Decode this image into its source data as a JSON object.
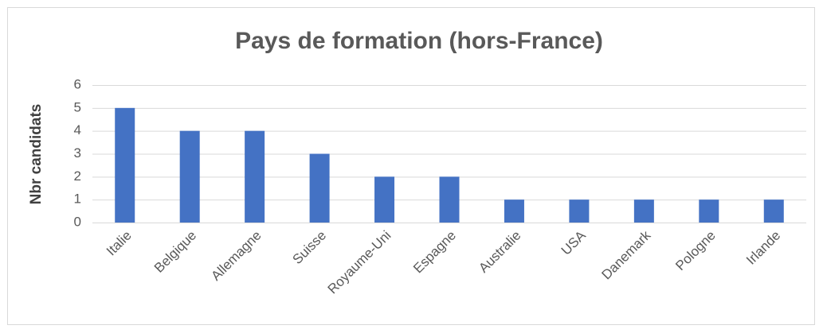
{
  "chart_data": {
    "type": "bar",
    "title": "Pays de formation (hors-France)",
    "y_label": "Nbr candidats",
    "categories": [
      "Italie",
      "Belgique",
      "Allemagne",
      "Suisse",
      "Royaume-Uni",
      "Espagne",
      "Australie",
      "USA",
      "Danemark",
      "Pologne",
      "Irlande"
    ],
    "values": [
      5,
      4,
      4,
      3,
      2,
      2,
      1,
      1,
      1,
      1,
      1
    ],
    "color": "#4472c4",
    "ylim": [
      0,
      6
    ],
    "yticks": [
      0,
      1,
      2,
      3,
      4,
      5,
      6
    ],
    "grid": true
  }
}
